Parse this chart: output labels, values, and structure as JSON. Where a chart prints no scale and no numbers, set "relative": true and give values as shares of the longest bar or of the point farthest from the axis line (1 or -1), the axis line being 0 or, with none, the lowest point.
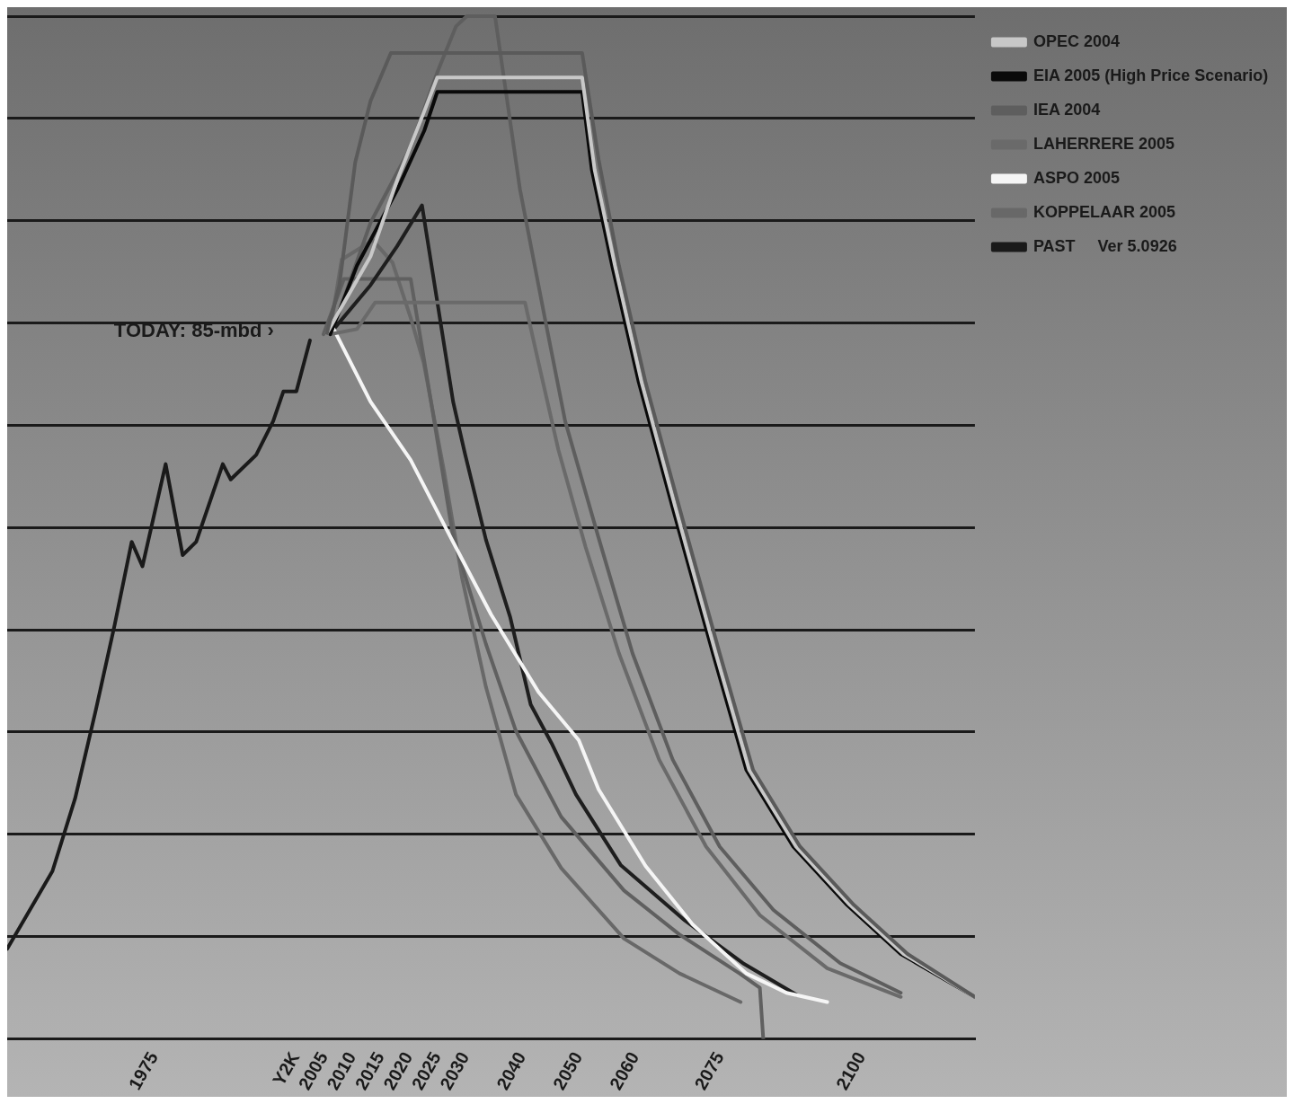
{
  "chart_data": {
    "type": "line",
    "relative": true,
    "grid": "y",
    "legend": "top right",
    "marker": "none",
    "line_style": "solid",
    "xlim": [
      1949,
      2120
    ],
    "xticks": [
      1975,
      {
        "value": 2000,
        "label": "Y2K"
      },
      2005,
      2010,
      2015,
      2020,
      2025,
      2030,
      2040,
      2050,
      2060,
      2075,
      2100
    ],
    "annotations": [
      {
        "text": "TODAY: 85-mbd ›",
        "x": 2002.5,
        "y": 0.683
      }
    ],
    "series": [
      {
        "color": "#5a5a5a",
        "x": [
          2005.5,
          2007.7,
          2010.5,
          2013.2,
          2016.8,
          2050.6,
          2053.5,
          2057.1,
          2061.8,
          2067.8,
          2074.9,
          2080.8,
          2089.1,
          2098.6,
          2108.1,
          2120
        ],
        "values": [
          0.69,
          0.737,
          0.857,
          0.917,
          0.964,
          0.964,
          0.86,
          0.756,
          0.642,
          0.519,
          0.377,
          0.263,
          0.188,
          0.131,
          0.083,
          0.041
        ]
      },
      {
        "name": "OPEC 2004",
        "color": "#c8c8c8",
        "x": [
          2005.5,
          2007.3,
          2013.2,
          2018,
          2022.7,
          2025,
          2050.6,
          2052.8,
          2056.4,
          2061.1,
          2067.1,
          2074.2,
          2080.1,
          2088.4,
          2097.9,
          2107.4,
          2120
        ],
        "values": [
          0.69,
          0.708,
          0.765,
          0.841,
          0.907,
          0.94,
          0.94,
          0.85,
          0.756,
          0.642,
          0.519,
          0.377,
          0.263,
          0.188,
          0.131,
          0.083,
          0.041
        ]
      },
      {
        "name": "EIA 2005 (High Price Scenario)",
        "color": "#0a0a0a",
        "x": [
          2006.1,
          2010.8,
          2018,
          2022.7,
          2025,
          2050.6,
          2052.3,
          2055.9,
          2060.6,
          2066.6,
          2073.7,
          2079.6,
          2087.9,
          2097.4,
          2106.9,
          2120
        ],
        "values": [
          0.689,
          0.756,
          0.831,
          0.888,
          0.926,
          0.926,
          0.85,
          0.756,
          0.642,
          0.519,
          0.377,
          0.263,
          0.188,
          0.131,
          0.083,
          0.041
        ]
      },
      {
        "name": "IEA 2004",
        "color": "#5e5e5e",
        "x": [
          2005.5,
          2007.3,
          2013.2,
          2020.3,
          2025,
          2028.3,
          2030.2,
          2035.2,
          2039.6,
          2044,
          2047.6,
          2053.5,
          2059.5,
          2066.6,
          2074.9,
          2084.4,
          2096.2,
          2106.9
        ],
        "values": [
          0.69,
          0.705,
          0.798,
          0.872,
          0.945,
          0.99,
          1,
          1,
          0.831,
          0.705,
          0.604,
          0.49,
          0.377,
          0.273,
          0.188,
          0.126,
          0.074,
          0.045
        ]
      },
      {
        "name": "LAHERRERE 2005",
        "color": "#6a6a6a",
        "x": [
          2006.1,
          2010.8,
          2014,
          2040.5,
          2042.9,
          2046.4,
          2051.2,
          2057.1,
          2064.2,
          2072.5,
          2082,
          2093.9,
          2106.9
        ],
        "values": [
          0.689,
          0.694,
          0.72,
          0.72,
          0.661,
          0.576,
          0.481,
          0.377,
          0.273,
          0.188,
          0.121,
          0.069,
          0.041
        ]
      },
      {
        "name": "ASPO 2005",
        "color": "#f5f5f5",
        "x": [
          2006.7,
          2013.2,
          2020.3,
          2027.4,
          2034.5,
          2042.9,
          2050,
          2053.5,
          2061.8,
          2070.1,
          2079.6,
          2086.7,
          2093.9
        ],
        "values": [
          0.694,
          0.623,
          0.566,
          0.49,
          0.415,
          0.339,
          0.292,
          0.244,
          0.169,
          0.112,
          0.064,
          0.045,
          0.036
        ]
      },
      {
        "color": "#1e1e1e",
        "x": [
          2006.7,
          2013.2,
          2017.9,
          2022.3,
          2027.8,
          2029.9,
          2033.6,
          2037.9,
          2041.5,
          2045.2,
          2049.5,
          2057.4,
          2068.7,
          2079,
          2088.5
        ],
        "values": [
          0.694,
          0.737,
          0.775,
          0.815,
          0.623,
          0.572,
          0.488,
          0.412,
          0.327,
          0.289,
          0.239,
          0.17,
          0.116,
          0.074,
          0.043
        ]
      },
      {
        "color": "#606060",
        "x": [
          2004.9,
          2008.5,
          2020.3,
          2023.9,
          2027.8,
          2033.6,
          2038.9,
          2046.9,
          2058,
          2067.8,
          2078.4,
          2082,
          2082.6
        ],
        "values": [
          0.689,
          0.743,
          0.743,
          0.623,
          0.491,
          0.386,
          0.301,
          0.217,
          0.145,
          0.102,
          0.064,
          0.05,
          0
        ]
      },
      {
        "name": "KOPPELAAR 2005",
        "color": "#686868",
        "x": [
          2006.1,
          2008.1,
          2013.6,
          2017.1,
          2020.3,
          2022.6,
          2026.2,
          2029.4,
          2033.6,
          2038.9,
          2046.9,
          2058,
          2067.8,
          2078.6
        ],
        "values": [
          0.694,
          0.762,
          0.781,
          0.759,
          0.705,
          0.661,
          0.555,
          0.45,
          0.344,
          0.239,
          0.167,
          0.098,
          0.064,
          0.036
        ]
      },
      {
        "name": "PAST     Ver 5.0926",
        "color": "#1a1a1a",
        "x": [
          1949,
          1957,
          1961,
          1964.6,
          1968,
          1971,
          1972.9,
          1977,
          1980,
          1982.4,
          1987.1,
          1988.5,
          1993,
          1996,
          1997.8,
          2000.1,
          2002.5
        ],
        "values": [
          0.088,
          0.164,
          0.235,
          0.32,
          0.405,
          0.486,
          0.462,
          0.562,
          0.473,
          0.486,
          0.562,
          0.547,
          0.571,
          0.604,
          0.633,
          0.633,
          0.683
        ]
      }
    ]
  }
}
